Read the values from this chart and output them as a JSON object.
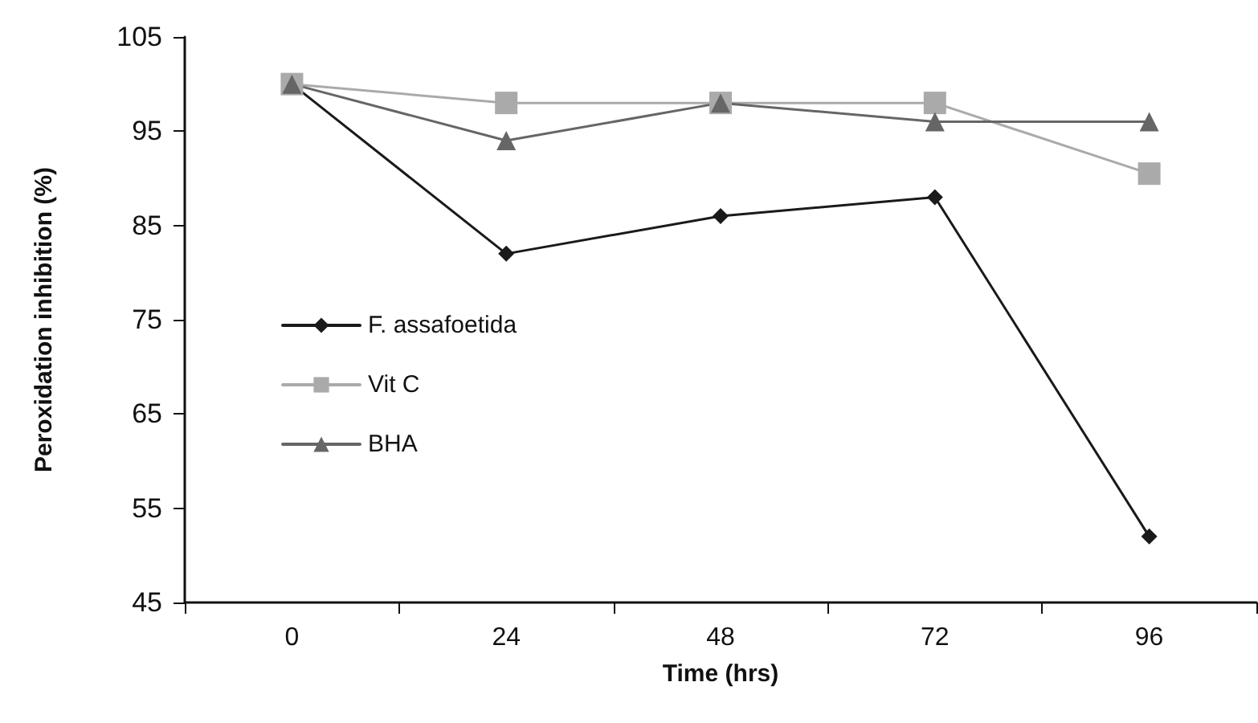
{
  "chart_data": {
    "type": "line",
    "xlabel": "Time (hrs)",
    "ylabel": "Peroxidation inhibition (%)",
    "categories": [
      "0",
      "24",
      "48",
      "72",
      "96"
    ],
    "series": [
      {
        "name": "F. assafoetida",
        "color": "#1a1a1a",
        "marker": "diamond",
        "values": [
          100,
          82,
          86,
          88,
          52
        ]
      },
      {
        "name": "Vit C",
        "color": "#aaaaaa",
        "marker": "square",
        "values": [
          100,
          98,
          98,
          98,
          90.5
        ]
      },
      {
        "name": "BHA",
        "color": "#666666",
        "marker": "triangle",
        "values": [
          100,
          94,
          98,
          96,
          96
        ]
      }
    ],
    "ylim": [
      45,
      105
    ],
    "yticks": [
      45,
      55,
      65,
      75,
      85,
      95,
      105
    ],
    "grid": false,
    "legend": "left",
    "line_style": "solid"
  }
}
